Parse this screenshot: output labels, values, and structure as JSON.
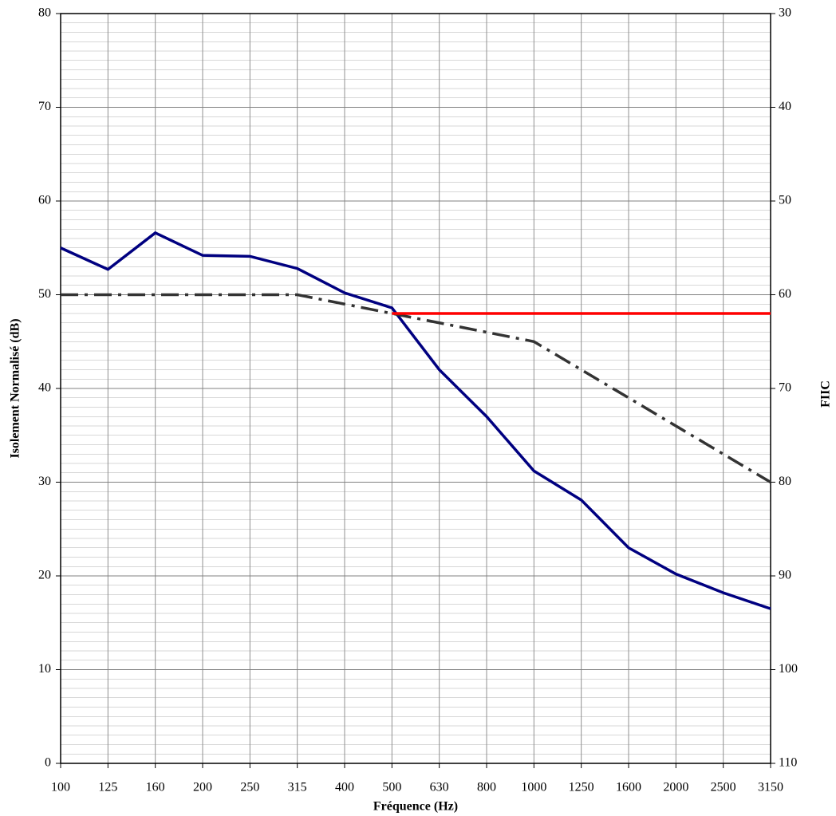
{
  "chart_data": {
    "type": "line",
    "x_label": "Fréquence (Hz)",
    "y_label": "Isolement Normalisé (dB)",
    "y2_label": "FIIC",
    "categories": [
      "100",
      "125",
      "160",
      "200",
      "250",
      "315",
      "400",
      "500",
      "630",
      "800",
      "1000",
      "1250",
      "1600",
      "2000",
      "2500",
      "3150"
    ],
    "series": [
      {
        "color": "#000080",
        "dash": "solid",
        "values": [
          55,
          52.7,
          56.6,
          54.2,
          54.1,
          52.8,
          50.2,
          48.6,
          42,
          37,
          31.2,
          28.1,
          23,
          20.2,
          18.2,
          16.5
        ]
      },
      {
        "color": "#333333",
        "dash": "dash-dot",
        "values": [
          50,
          50,
          50,
          50,
          50,
          50,
          49,
          48,
          47,
          46,
          45,
          42,
          39,
          36,
          33,
          30
        ]
      },
      {
        "color": "#ff0000",
        "dash": "solid",
        "values": [
          null,
          null,
          null,
          null,
          null,
          null,
          null,
          48,
          48,
          48,
          48,
          48,
          48,
          48,
          48,
          48
        ]
      }
    ],
    "ylim": [
      0,
      80
    ],
    "yticks": [
      0,
      10,
      20,
      30,
      40,
      50,
      60,
      70,
      80
    ],
    "y2lim": [
      110,
      30
    ],
    "y2ticks": [
      30,
      40,
      50,
      60,
      70,
      80,
      90,
      100,
      110
    ],
    "grid": true,
    "minor_grid_step": 1
  }
}
